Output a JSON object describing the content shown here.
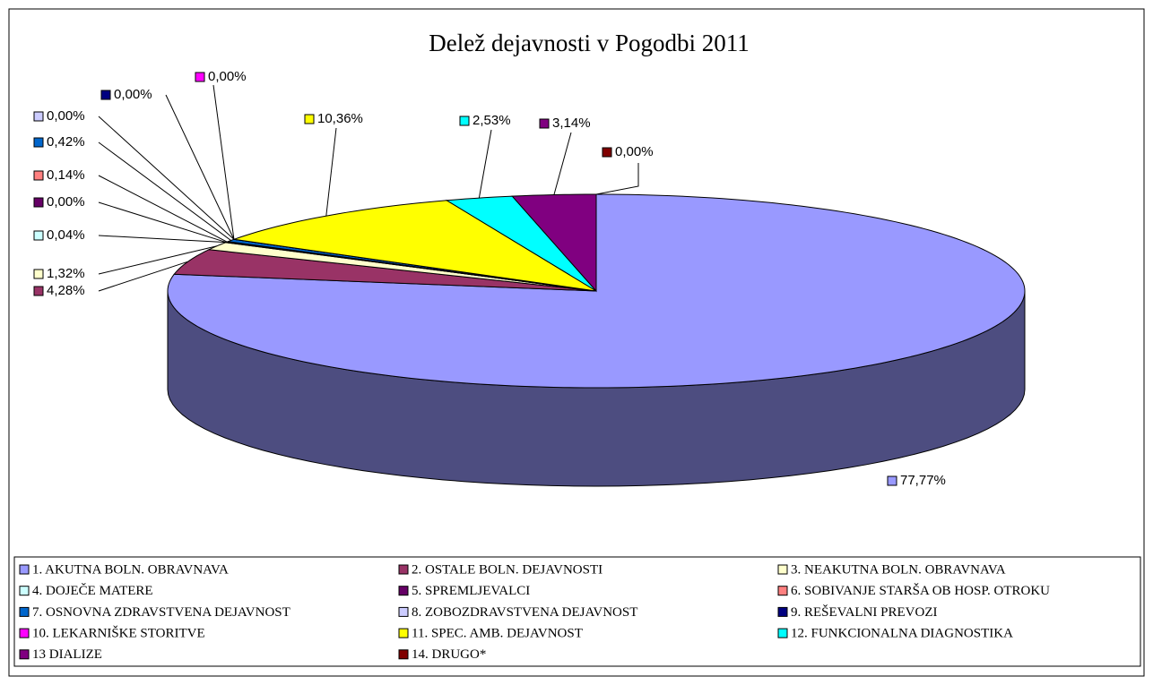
{
  "chart_data": {
    "type": "pie",
    "title": "Delež dejavnosti v Pogodbi 2011",
    "categories": [
      "1. AKUTNA BOLN. OBRAVNAVA",
      "2. OSTALE BOLN. DEJAVNOSTI",
      "3. NEAKUTNA BOLN. OBRAVNAVA",
      "4. DOJEČE MATERE",
      "5. SPREMLJEVALCI",
      "6. SOBIVANJE STARŠA OB HOSP. OTROKU",
      "7. OSNOVNA ZDRAVSTVENA DEJAVNOST",
      "8. ZOBOZDRAVSTVENA DEJAVNOST",
      "9. REŠEVALNI PREVOZI",
      "10. LEKARNIŠKE STORITVE",
      "11. SPEC. AMB. DEJAVNOST",
      "12. FUNKCIONALNA DIAGNOSTIKA",
      "13 DIALIZE",
      "14. DRUGO*"
    ],
    "values": [
      77.77,
      4.28,
      1.32,
      0.04,
      0.0,
      0.14,
      0.42,
      0.0,
      0.0,
      0.0,
      10.36,
      2.53,
      3.14,
      0.0
    ],
    "value_labels": [
      "77,77%",
      "4,28%",
      "1,32%",
      "0,04%",
      "0,00%",
      "0,14%",
      "0,42%",
      "0,00%",
      "0,00%",
      "0,00%",
      "10,36%",
      "2,53%",
      "3,14%",
      "0,00%"
    ],
    "colors": [
      "#9999ff",
      "#993366",
      "#ffffcc",
      "#ccffff",
      "#660066",
      "#ff8080",
      "#0066cc",
      "#ccccff",
      "#000080",
      "#ff00ff",
      "#ffff00",
      "#00ffff",
      "#800080",
      "#800000"
    ],
    "legend": "bottom"
  }
}
